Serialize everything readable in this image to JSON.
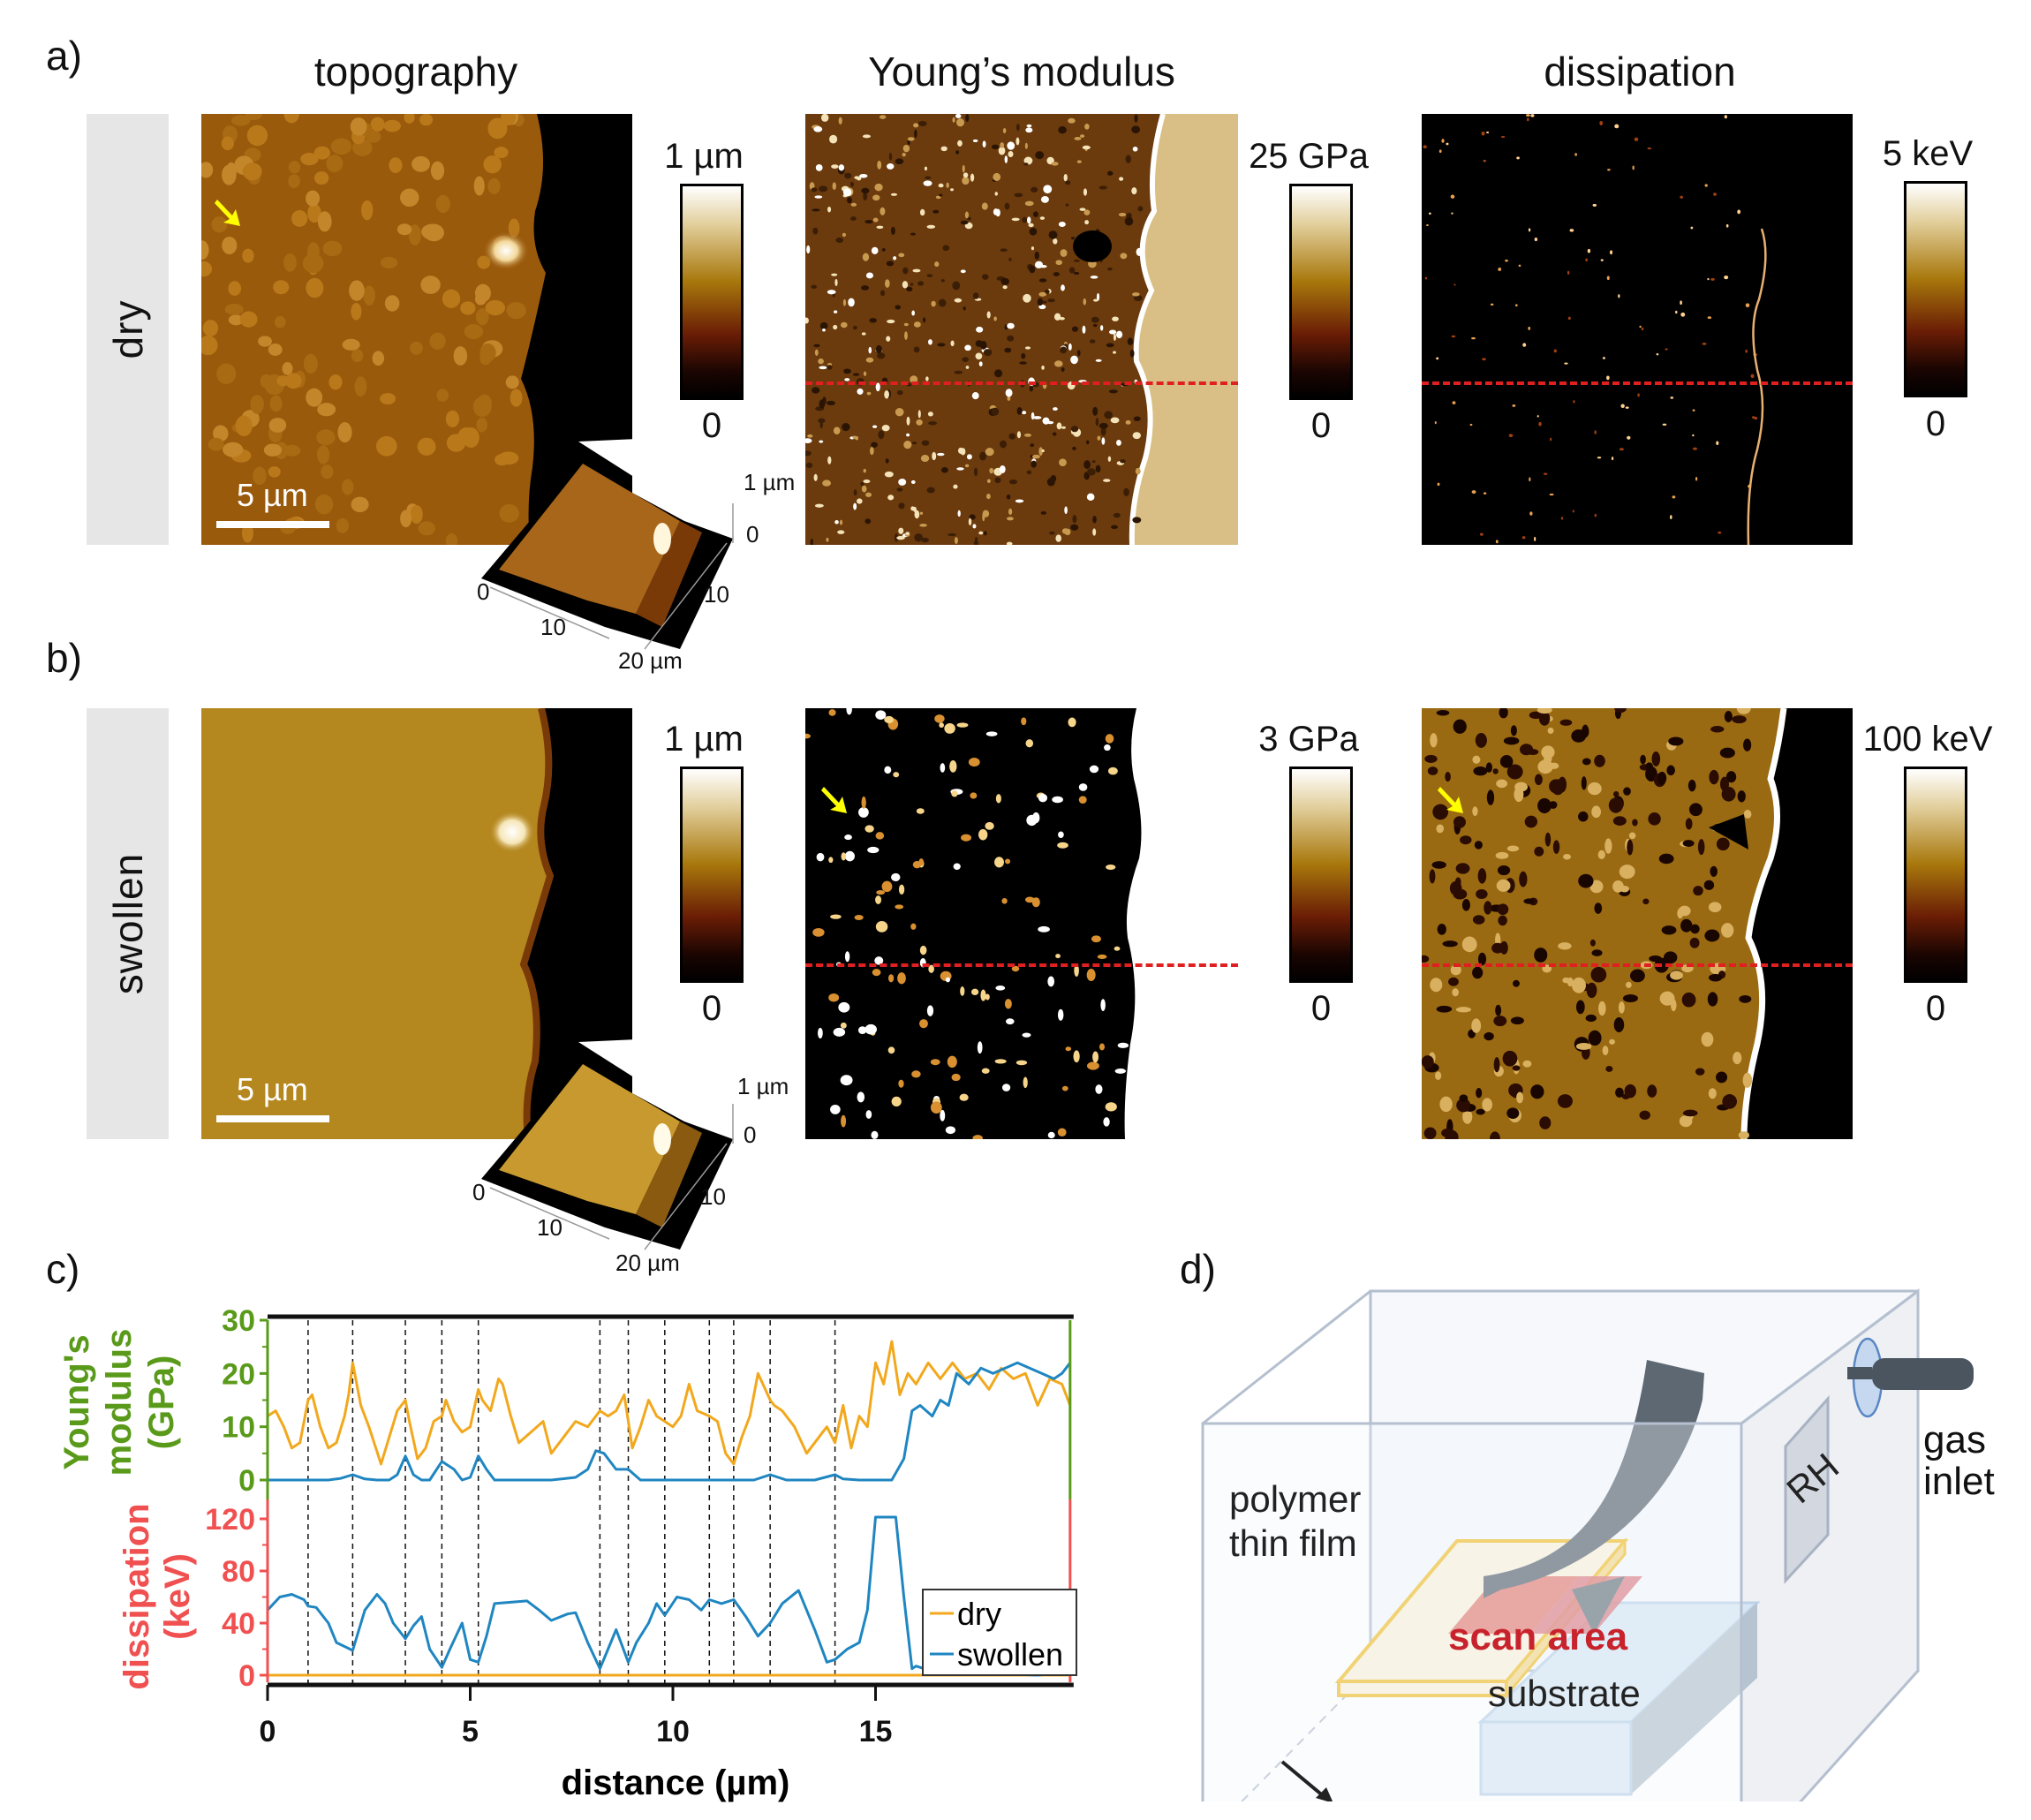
{
  "panels": {
    "a": {
      "letter": "a)"
    },
    "b": {
      "letter": "b)"
    },
    "c": {
      "letter": "c)"
    },
    "d": {
      "letter": "d)"
    }
  },
  "columns": [
    "topography",
    "Young’s modulus",
    "dissipation"
  ],
  "rows": [
    {
      "label": "dry",
      "topography": {
        "colorbar_max": "1 µm",
        "colorbar_min": "0",
        "scalebar": "5 µm",
        "inset_z_max": "1 µm",
        "inset_z_min": "0",
        "inset_x_ticks": [
          "0",
          "10",
          "20 µm"
        ],
        "inset_y_ticks": [
          "10"
        ],
        "tint": "#9a5a0c"
      },
      "modulus": {
        "colorbar_max": "25 GPa",
        "colorbar_min": "0"
      },
      "dissipation": {
        "colorbar_max": "5 keV",
        "colorbar_min": "0"
      }
    },
    {
      "label": "swollen",
      "topography": {
        "colorbar_max": "1 µm",
        "colorbar_min": "0",
        "scalebar": "5 µm",
        "inset_z_max": "1 µm",
        "inset_z_min": "0",
        "inset_x_ticks": [
          "0",
          "10",
          "20 µm"
        ],
        "inset_y_ticks": [
          "10"
        ],
        "tint": "#b4871f"
      },
      "modulus": {
        "colorbar_max": "3 GPa",
        "colorbar_min": "0"
      },
      "dissipation": {
        "colorbar_max": "100 keV",
        "colorbar_min": "0"
      }
    }
  ],
  "colors": {
    "dry": "#f2a81d",
    "swollen": "#1f86c1",
    "modulus_axis": "#5a9a1a",
    "dissipation_axis": "#f05050",
    "marker_line": "#e02020",
    "arrow": "#ffff00",
    "scan_area_text": "#c8232c"
  },
  "chart_data": {
    "type": "line",
    "xlabel": "distance (µm)",
    "xlim": [
      0,
      19.8
    ],
    "x_ticks": [
      "0",
      "5",
      "10",
      "15"
    ],
    "vertical_dashed_lines_x": [
      1.0,
      2.1,
      3.4,
      4.3,
      5.2,
      8.2,
      8.9,
      9.8,
      10.9,
      11.5,
      12.4,
      14.0
    ],
    "panels": [
      {
        "name": "modulus",
        "ylabel": "Young's modulus (GPa)",
        "ylim": [
          0,
          30
        ],
        "y_ticks": [
          "0",
          "10",
          "20",
          "30"
        ],
        "series": [
          {
            "name": "dry",
            "x": [
              0,
              0.2,
              0.4,
              0.6,
              0.8,
              1.0,
              1.1,
              1.3,
              1.5,
              1.7,
              1.9,
              2.0,
              2.1,
              2.3,
              2.5,
              2.8,
              3.0,
              3.2,
              3.4,
              3.5,
              3.7,
              3.9,
              4.1,
              4.3,
              4.4,
              4.6,
              4.8,
              5.0,
              5.2,
              5.3,
              5.5,
              5.7,
              5.8,
              6.0,
              6.2,
              6.5,
              6.8,
              7.0,
              7.3,
              7.6,
              7.9,
              8.2,
              8.4,
              8.6,
              8.8,
              9.0,
              9.2,
              9.4,
              9.6,
              9.8,
              10.0,
              10.2,
              10.4,
              10.6,
              10.9,
              11.1,
              11.3,
              11.5,
              11.7,
              11.9,
              12.1,
              12.4,
              12.5,
              12.7,
              13.0,
              13.3,
              13.6,
              13.8,
              14.0,
              14.2,
              14.4,
              14.6,
              14.8,
              15.0,
              15.2,
              15.4,
              15.6,
              15.8,
              16.0,
              16.3,
              16.6,
              16.9,
              17.2,
              17.5,
              17.8,
              18.1,
              18.4,
              18.7,
              19.0,
              19.3,
              19.6,
              19.8
            ],
            "y": [
              12,
              13,
              10,
              6,
              7,
              15,
              16,
              10,
              6,
              7,
              12,
              16,
              22,
              14,
              10,
              3,
              8,
              13,
              15,
              11,
              4,
              6,
              11,
              12,
              15,
              11,
              9,
              10,
              17,
              15,
              13,
              19,
              18,
              12,
              7,
              9,
              11,
              5,
              8,
              11,
              10,
              13,
              12,
              13,
              16,
              6,
              10,
              15,
              12,
              11,
              10,
              12,
              18,
              13,
              12,
              11,
              5,
              3,
              8,
              12,
              20,
              15,
              14,
              13,
              10,
              5,
              8,
              10,
              7,
              14,
              6,
              12,
              10,
              22,
              18,
              26,
              16,
              20,
              18,
              22,
              19,
              22,
              19,
              20,
              17,
              21,
              19,
              20,
              14,
              19,
              18,
              14
            ],
            "color": "#f2a81d"
          },
          {
            "name": "swollen",
            "x": [
              0,
              0.5,
              1.0,
              1.5,
              1.8,
              2.1,
              2.4,
              2.7,
              3.0,
              3.2,
              3.4,
              3.6,
              3.8,
              4.0,
              4.3,
              4.6,
              4.8,
              5.0,
              5.2,
              5.4,
              5.6,
              6.0,
              7.0,
              7.6,
              7.9,
              8.1,
              8.3,
              8.6,
              8.9,
              9.2,
              9.5,
              10.0,
              11.0,
              12.0,
              12.4,
              12.8,
              13.5,
              14.0,
              14.2,
              14.6,
              15.0,
              15.4,
              15.7,
              15.9,
              16.1,
              16.4,
              16.6,
              16.8,
              17.0,
              17.3,
              17.6,
              17.9,
              18.2,
              18.5,
              18.8,
              19.1,
              19.4,
              19.6,
              19.8
            ],
            "y": [
              0,
              0,
              0,
              0,
              0.3,
              1,
              0.2,
              0,
              0,
              1,
              4.5,
              1,
              0,
              0,
              3.5,
              2,
              0,
              0.5,
              4.5,
              2,
              0,
              0,
              0,
              0.5,
              2,
              5.5,
              5,
              2,
              2,
              0,
              0,
              0,
              0,
              0,
              1,
              0,
              0,
              1,
              0.2,
              0,
              0,
              0,
              4,
              13,
              14,
              12,
              15,
              14,
              20,
              18,
              21,
              20,
              21,
              22,
              21,
              20,
              19,
              20,
              22
            ],
            "color": "#1f86c1"
          }
        ]
      },
      {
        "name": "dissipation",
        "ylabel": "dissipation (keV)",
        "ylim": [
          0,
          120
        ],
        "y_ticks": [
          "0",
          "40",
          "80",
          "120"
        ],
        "series": [
          {
            "name": "dry",
            "x": [
              0,
              19.8
            ],
            "y": [
              0,
              0
            ],
            "color": "#f2a81d"
          },
          {
            "name": "swollen",
            "x": [
              0,
              0.3,
              0.6,
              0.9,
              1.0,
              1.2,
              1.5,
              1.7,
              1.9,
              2.1,
              2.4,
              2.7,
              2.9,
              3.1,
              3.4,
              3.6,
              3.8,
              4.0,
              4.3,
              4.5,
              4.8,
              5.0,
              5.2,
              5.4,
              5.6,
              6.0,
              6.4,
              6.7,
              7.0,
              7.4,
              7.6,
              7.9,
              8.2,
              8.4,
              8.6,
              8.9,
              9.1,
              9.4,
              9.6,
              9.8,
              10.1,
              10.4,
              10.7,
              10.9,
              11.2,
              11.5,
              11.8,
              12.1,
              12.4,
              12.7,
              13.1,
              13.5,
              13.8,
              14.0,
              14.3,
              14.6,
              14.8,
              15.0,
              15.2,
              15.5,
              15.7,
              15.9,
              16.0,
              16.3,
              17.0,
              18.0,
              19.0,
              19.8
            ],
            "y": [
              50,
              60,
              62,
              58,
              53,
              52,
              40,
              25,
              22,
              19,
              50,
              62,
              55,
              40,
              28,
              38,
              45,
              20,
              6,
              20,
              40,
              12,
              10,
              30,
              55,
              56,
              57,
              50,
              42,
              47,
              48,
              25,
              5,
              20,
              35,
              10,
              25,
              40,
              55,
              46,
              60,
              58,
              50,
              58,
              55,
              58,
              45,
              30,
              40,
              55,
              65,
              35,
              10,
              12,
              20,
              25,
              50,
              128,
              130,
              128,
              60,
              5,
              7,
              4,
              2,
              1,
              0,
              2
            ],
            "color": "#1f86c1"
          }
        ]
      }
    ],
    "legend": {
      "position": "lower-right",
      "entries": [
        "dry",
        "swollen"
      ]
    }
  },
  "schematic": {
    "labels": {
      "film": "polymer\nthin film",
      "film_line1": "polymer",
      "film_line2": "thin film",
      "scan": "scan area",
      "substrate": "substrate",
      "rh": "RH",
      "gas_line1": "gas",
      "gas_line2": "inlet"
    }
  }
}
